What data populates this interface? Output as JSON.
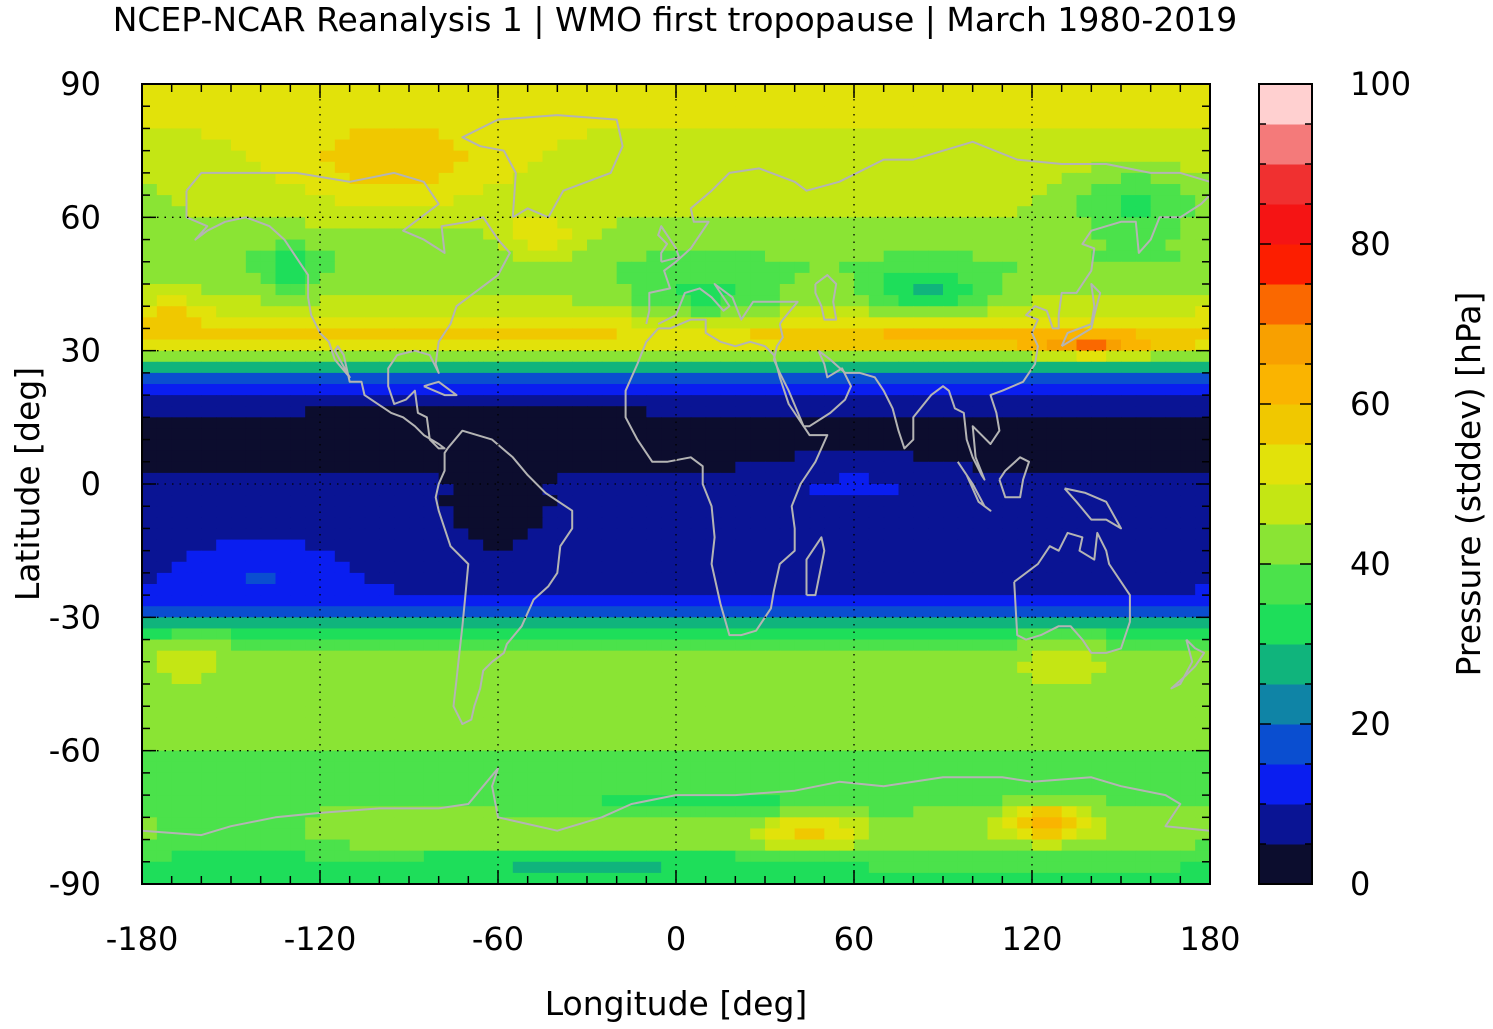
{
  "chart_data": {
    "type": "heatmap",
    "title": "NCEP-NCAR Reanalysis 1 | WMO first tropopause | March 1980-2019",
    "xlabel": "Longitude [deg]",
    "ylabel": "Latitude [deg]",
    "colorbar_label": "Pressure (stddev) [hPa]",
    "xlim": [
      -180,
      180
    ],
    "ylim": [
      -90,
      90
    ],
    "clim": [
      0,
      100
    ],
    "xticks": [
      -180,
      -120,
      -60,
      0,
      60,
      120,
      180
    ],
    "yticks": [
      90,
      60,
      30,
      0,
      -30,
      -60,
      -90
    ],
    "cticks": [
      0,
      20,
      40,
      60,
      80,
      100
    ],
    "xtick_labels": [
      "-180",
      "-120",
      "-60",
      "0",
      "60",
      "120",
      "180"
    ],
    "ytick_labels": [
      "90",
      "60",
      "30",
      "0",
      "-30",
      "-60",
      "-90"
    ],
    "ctick_labels": [
      "0",
      "20",
      "40",
      "60",
      "80",
      "100"
    ],
    "grid": true,
    "coastlines": true,
    "coastline_color": "#b4b4b4",
    "colormap": [
      {
        "from": 0,
        "to": 5,
        "color": "#0c0d2e"
      },
      {
        "from": 5,
        "to": 10,
        "color": "#0a1494"
      },
      {
        "from": 10,
        "to": 15,
        "color": "#0a1ef0"
      },
      {
        "from": 15,
        "to": 20,
        "color": "#0a4ed0"
      },
      {
        "from": 20,
        "to": 25,
        "color": "#0f84a6"
      },
      {
        "from": 25,
        "to": 30,
        "color": "#10b47c"
      },
      {
        "from": 30,
        "to": 35,
        "color": "#1ede5a"
      },
      {
        "from": 35,
        "to": 40,
        "color": "#4be24b"
      },
      {
        "from": 40,
        "to": 45,
        "color": "#8ae434"
      },
      {
        "from": 45,
        "to": 50,
        "color": "#c4e614"
      },
      {
        "from": 50,
        "to": 55,
        "color": "#e2e20a"
      },
      {
        "from": 55,
        "to": 60,
        "color": "#f0c800"
      },
      {
        "from": 60,
        "to": 65,
        "color": "#fab400"
      },
      {
        "from": 65,
        "to": 70,
        "color": "#f8a000"
      },
      {
        "from": 70,
        "to": 75,
        "color": "#fa6800"
      },
      {
        "from": 75,
        "to": 80,
        "color": "#fc1e00"
      },
      {
        "from": 80,
        "to": 85,
        "color": "#f51414"
      },
      {
        "from": 85,
        "to": 90,
        "color": "#f03030"
      },
      {
        "from": 90,
        "to": 95,
        "color": "#f47a7a"
      },
      {
        "from": 95,
        "to": 100,
        "color": "#ffd0d0"
      }
    ],
    "field_description": "Gridded standard deviation of tropopause pressure: values 0-10 hPa between about 25S and 25N, 30-55 hPa in the extratropics, local maxima near 30N and over East Antarctica.",
    "zonal_profile": {
      "lat": [
        90,
        80,
        70,
        60,
        50,
        40,
        32,
        28,
        25,
        22,
        20,
        15,
        10,
        5,
        0,
        -5,
        -10,
        -15,
        -20,
        -25,
        -28,
        -30,
        -35,
        -40,
        -50,
        -60,
        -70,
        -75,
        -80,
        -85,
        -90
      ],
      "value": [
        52,
        50,
        48,
        45,
        40,
        47,
        58,
        38,
        18,
        12,
        8,
        4,
        4,
        4,
        6,
        6,
        7,
        8,
        9,
        10,
        14,
        24,
        38,
        42,
        44,
        40,
        38,
        42,
        44,
        36,
        34
      ]
    }
  }
}
